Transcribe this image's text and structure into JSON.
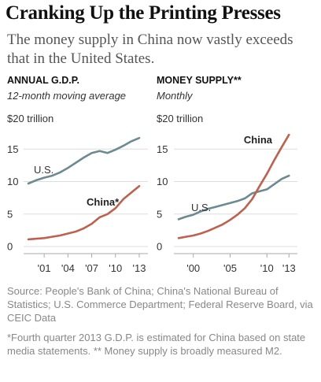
{
  "header": {
    "title": "Cranking Up the Printing Presses",
    "subtitle": "The money supply in China now vastly exceeds that in the United States."
  },
  "colors": {
    "us_line": "#6b8a92",
    "china_line": "#c0604e",
    "grid": "#dddddd",
    "axis": "#aaaaaa"
  },
  "chart_data": [
    {
      "type": "line",
      "title": "ANNUAL G.D.P.",
      "subtitle": "12-month moving average",
      "ylim": [
        0,
        20
      ],
      "xlim": [
        1999,
        2013.5
      ],
      "yticks": [
        {
          "value": 20,
          "label": "$20 trillion"
        },
        {
          "value": 15,
          "label": "15"
        },
        {
          "value": 10,
          "label": "10"
        },
        {
          "value": 5,
          "label": "5"
        },
        {
          "value": 0,
          "label": "0"
        }
      ],
      "xticks": [
        {
          "value": 2001,
          "label": "'01"
        },
        {
          "value": 2004,
          "label": "'04"
        },
        {
          "value": 2007,
          "label": "'07"
        },
        {
          "value": 2010,
          "label": "'10"
        },
        {
          "value": 2013,
          "label": "'13"
        }
      ],
      "grid": true,
      "series": [
        {
          "name": "U.S.",
          "color": "#6b8a92",
          "x": [
            1999,
            2000,
            2001,
            2002,
            2003,
            2004,
            2005,
            2006,
            2007,
            2008,
            2009,
            2010,
            2011,
            2012,
            2013
          ],
          "y": [
            9.7,
            10.2,
            10.6,
            10.9,
            11.4,
            12.1,
            12.9,
            13.7,
            14.4,
            14.7,
            14.4,
            14.9,
            15.5,
            16.2,
            16.7
          ]
        },
        {
          "name": "China*",
          "color": "#c0604e",
          "x": [
            1999,
            2000,
            2001,
            2002,
            2003,
            2004,
            2005,
            2006,
            2007,
            2008,
            2009,
            2010,
            2011,
            2012,
            2013
          ],
          "y": [
            1.1,
            1.2,
            1.3,
            1.5,
            1.7,
            2.0,
            2.3,
            2.8,
            3.5,
            4.5,
            5.0,
            5.9,
            7.3,
            8.3,
            9.3
          ]
        }
      ]
    },
    {
      "type": "line",
      "title": "MONEY SUPPLY**",
      "subtitle": "Monthly",
      "ylim": [
        0,
        20
      ],
      "xlim": [
        1998,
        2013.5
      ],
      "yticks": [
        {
          "value": 20,
          "label": "$20 trillion"
        },
        {
          "value": 15,
          "label": "15"
        },
        {
          "value": 10,
          "label": "10"
        },
        {
          "value": 5,
          "label": "5"
        },
        {
          "value": 0,
          "label": "0"
        }
      ],
      "xticks": [
        {
          "value": 2000,
          "label": "'00"
        },
        {
          "value": 2005,
          "label": "'05"
        },
        {
          "value": 2010,
          "label": "'10"
        },
        {
          "value": 2013,
          "label": "'13"
        }
      ],
      "grid": true,
      "series": [
        {
          "name": "U.S.",
          "color": "#6b8a92",
          "x": [
            1998,
            1999,
            2000,
            2001,
            2002,
            2003,
            2004,
            2005,
            2006,
            2007,
            2008,
            2009,
            2010,
            2011,
            2012,
            2013
          ],
          "y": [
            4.2,
            4.6,
            4.9,
            5.4,
            5.8,
            6.1,
            6.4,
            6.7,
            7.0,
            7.4,
            8.2,
            8.5,
            8.8,
            9.6,
            10.4,
            10.9
          ]
        },
        {
          "name": "China",
          "color": "#c0604e",
          "x": [
            1998,
            1999,
            2000,
            2001,
            2002,
            2003,
            2004,
            2005,
            2006,
            2007,
            2008,
            2009,
            2010,
            2011,
            2012,
            2013
          ],
          "y": [
            1.3,
            1.5,
            1.7,
            2.0,
            2.4,
            2.9,
            3.4,
            4.1,
            4.9,
            5.9,
            7.3,
            9.3,
            11.2,
            13.3,
            15.3,
            17.2
          ]
        }
      ]
    }
  ],
  "footer": {
    "source": "Source: People's Bank of China; China's National Bureau of Statistics; U.S. Commerce Department; Federal Reserve Board, via CEIC Data",
    "footnote": "*Fourth quarter 2013 G.D.P. is estimated for China based on state media statements. ** Money supply is broadly measured M2."
  }
}
